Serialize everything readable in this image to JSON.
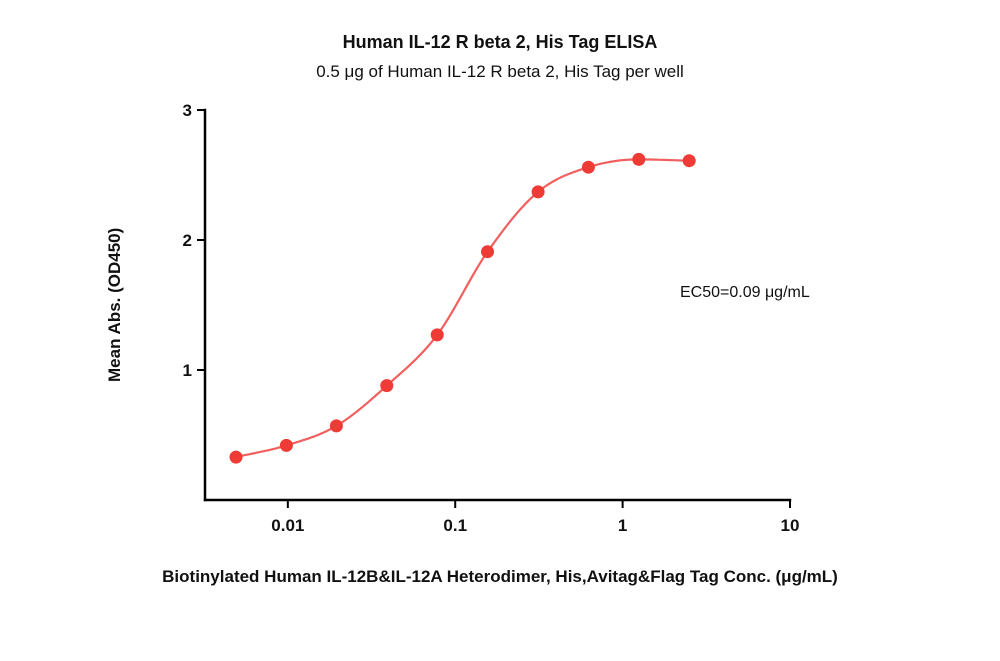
{
  "figure": {
    "title": "Human IL-12 R beta 2, His Tag ELISA",
    "subtitle": "0.5 μg of Human IL-12 R beta 2, His Tag per well",
    "ylabel": "Mean Abs. (OD450)",
    "xlabel": "Biotinylated Human IL-12B&IL-12A Heterodimer, His,Avitag&Flag Tag Conc. (μg/mL)",
    "annotation": "EC50=0.09 μg/mL"
  },
  "chart_data": {
    "type": "scatter",
    "title": "Human IL-12 R beta 2, His Tag ELISA",
    "subtitle": "0.5 μg of Human IL-12 R beta 2, His Tag per well",
    "xlabel": "Biotinylated Human IL-12B&IL-12A Heterodimer, His,Avitag&Flag Tag Conc. (μg/mL)",
    "ylabel": "Mean Abs. (OD450)",
    "xscale": "log",
    "xlim": [
      0.0032,
      10
    ],
    "ylim": [
      0,
      3
    ],
    "grid": false,
    "legend": "none",
    "ec50_ug_per_ml": 0.09,
    "annotation": "EC50=0.09 μg/mL",
    "x": [
      0.0049,
      0.0098,
      0.0195,
      0.039,
      0.078,
      0.156,
      0.3125,
      0.625,
      1.25,
      2.5
    ],
    "y": [
      0.33,
      0.42,
      0.57,
      0.88,
      1.27,
      1.91,
      2.37,
      2.56,
      2.62,
      2.61
    ],
    "fit": "4PL sigmoidal dose-response curve through points",
    "xticks": {
      "values": [
        0.01,
        0.1,
        1,
        10
      ],
      "labels": [
        "0.01",
        "0.1",
        "1",
        "10"
      ]
    },
    "yticks": {
      "values": [
        1,
        2,
        3
      ],
      "labels": [
        "1",
        "2",
        "3"
      ]
    },
    "colors": {
      "point": "#ee3b36",
      "line": "#f15f5f",
      "axis": "#000000",
      "text": "#111111"
    }
  }
}
